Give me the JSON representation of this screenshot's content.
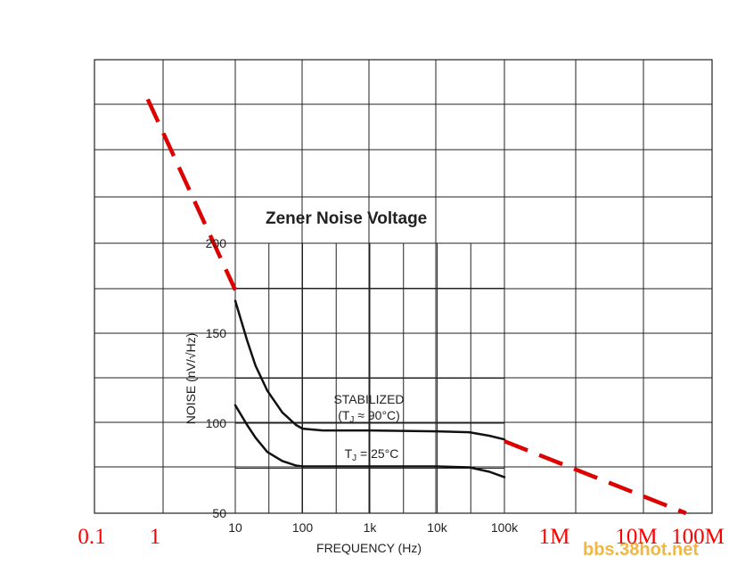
{
  "chart_data": [
    {
      "type": "line",
      "title": "Zener Noise Voltage",
      "xlabel": "FREQUENCY (Hz)",
      "ylabel": "NOISE (nV/√Hz)",
      "x_scale": "log",
      "xlim": [
        10,
        100000
      ],
      "ylim": [
        50,
        200
      ],
      "grid": true,
      "x_ticks": [
        "10",
        "100",
        "1k",
        "10k",
        "100k"
      ],
      "y_ticks": [
        "200",
        "150",
        "100",
        "50"
      ],
      "series": [
        {
          "name": "STABILIZED (TJ ≈ 90°C)",
          "color": "#111111",
          "x": [
            10,
            15,
            20,
            30,
            50,
            80,
            100,
            200,
            1000,
            10000,
            30000,
            60000,
            100000
          ],
          "y": [
            168,
            146,
            132,
            118,
            106,
            99,
            97,
            96,
            96,
            95.5,
            95,
            93,
            91
          ]
        },
        {
          "name": "TJ = 25°C",
          "color": "#111111",
          "x": [
            10,
            15,
            20,
            30,
            50,
            80,
            100,
            200,
            1000,
            10000,
            30000,
            60000,
            100000
          ],
          "y": [
            110,
            99,
            92,
            84,
            79,
            76.5,
            76,
            76,
            76,
            76,
            75.5,
            73,
            70
          ]
        }
      ]
    },
    {
      "type": "line",
      "x_scale": "log",
      "x_ticks_extended": [
        "0.1",
        "1",
        "1M",
        "10M",
        "100M"
      ],
      "x_ticks_colour": "#ff0000",
      "series": [
        {
          "color": "#dd0000",
          "line_style": "dashed",
          "x": [
            0.5,
            10
          ],
          "y": [
            280,
            174
          ]
        },
        {
          "color": "#dd0000",
          "line_style": "dashed",
          "x": [
            100000,
            50000000
          ],
          "y": [
            90,
            50
          ]
        }
      ]
    }
  ],
  "watermark": "bbs.38hot.net"
}
